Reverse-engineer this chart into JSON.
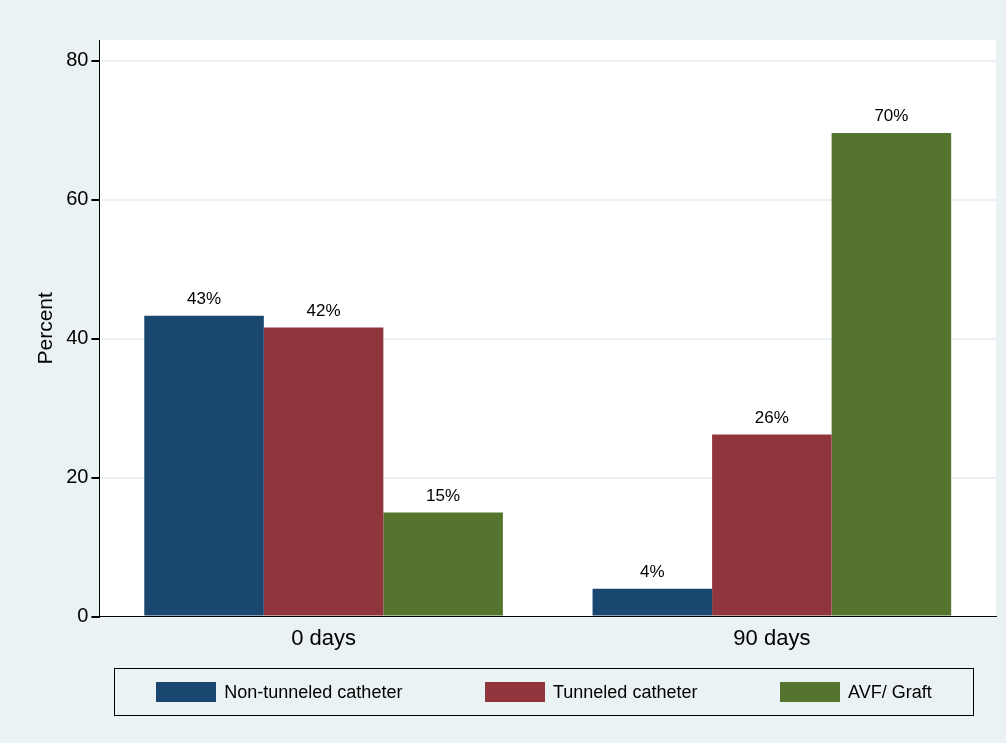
{
  "chart_data": {
    "type": "bar",
    "ylabel": "Percent",
    "categories": [
      "0 days",
      "90 days"
    ],
    "series": [
      {
        "name": "Non-tunneled catheter",
        "color": "#1a476f",
        "values": [
          43.3,
          4
        ],
        "value_labels": [
          "43%",
          "4%"
        ]
      },
      {
        "name": "Tunneled catheter",
        "color": "#90353b",
        "values": [
          41.6,
          26.2
        ],
        "value_labels": [
          "42%",
          "26%"
        ]
      },
      {
        "name": "AVF/ Graft",
        "color": "#55752f",
        "values": [
          15,
          69.6
        ],
        "value_labels": [
          "15%",
          "70%"
        ]
      }
    ],
    "ylim": [
      0,
      83
    ],
    "yticks": [
      0,
      20,
      40,
      60,
      80
    ],
    "grid": "y",
    "legend": "bottom"
  }
}
